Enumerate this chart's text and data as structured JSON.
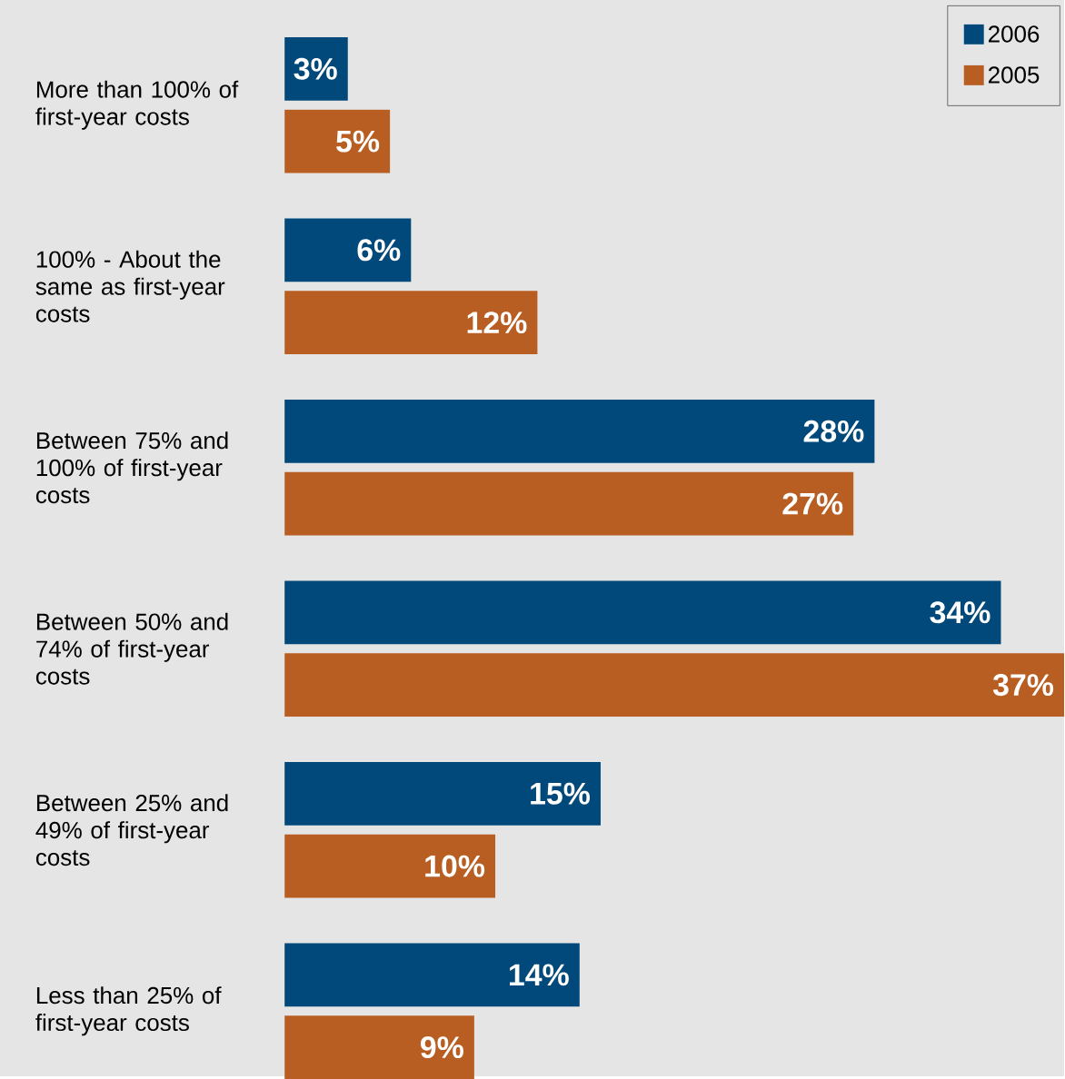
{
  "chart_data": {
    "type": "bar",
    "orientation": "horizontal",
    "categories": [
      "More than 100% of first-year costs",
      "100% - About the same as first-year costs",
      "Between 75% and 100% of first-year costs",
      "Between 50% and 74% of first-year costs",
      "Between 25% and 49% of first-year costs",
      "Less than 25% of first-year costs"
    ],
    "series": [
      {
        "name": "2006",
        "color": "#00497a",
        "values": [
          3,
          6,
          28,
          34,
          15,
          14
        ],
        "value_labels": [
          "3%",
          "6%",
          "28%",
          "34%",
          "15%",
          "14%"
        ]
      },
      {
        "name": "2005",
        "color": "#b85e22",
        "values": [
          5,
          12,
          27,
          37,
          10,
          9
        ],
        "value_labels": [
          "5%",
          "12%",
          "27%",
          "37%",
          "10%",
          "9%"
        ]
      }
    ],
    "xlim": [
      0,
      37
    ],
    "legend": "top right",
    "tick_labels": "y"
  }
}
